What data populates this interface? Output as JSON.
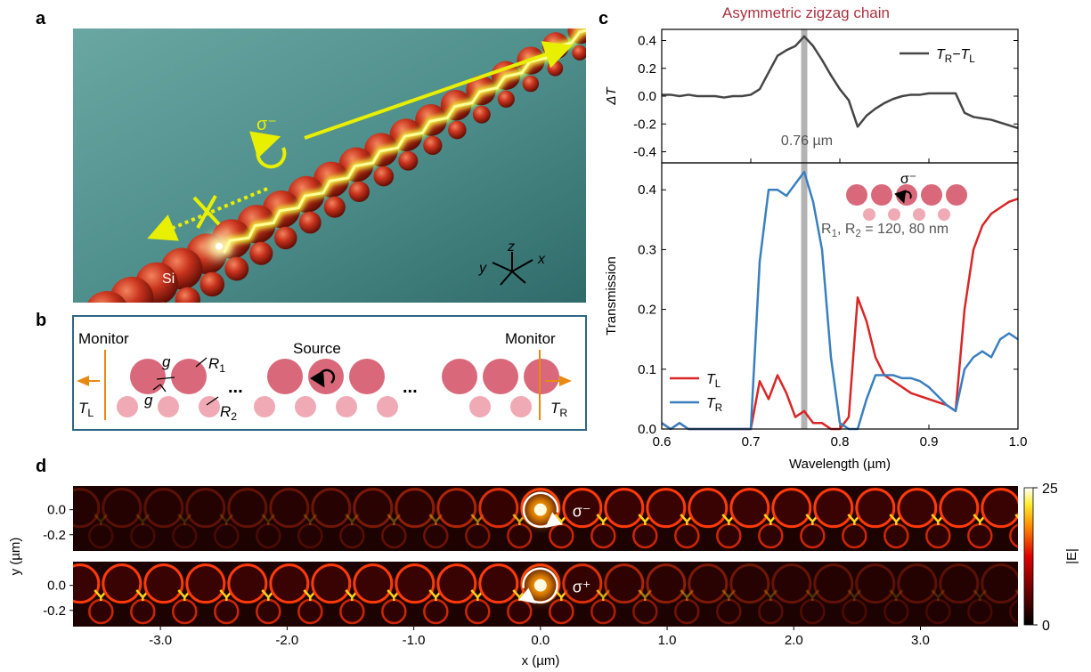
{
  "figure": {
    "panel_labels": [
      "a",
      "b",
      "c",
      "d"
    ],
    "panel_a": {
      "polarization": "σ⁻",
      "material": "Si",
      "axes": [
        "x",
        "y",
        "z"
      ]
    },
    "panel_b": {
      "monitor_left": "Monitor",
      "monitor_right": "Monitor",
      "source": "Source",
      "gap_labels": [
        "g",
        "g"
      ],
      "radius_1": [
        "R",
        "1"
      ],
      "radius_2": [
        "R",
        "2"
      ],
      "ellipsis": [
        "...",
        "..."
      ],
      "transmission_left": [
        "T",
        "L"
      ],
      "transmission_right": [
        "T",
        "R"
      ]
    }
  },
  "chart_data": [
    {
      "type": "line",
      "title": "Asymmetric zigzag chain",
      "ylabel": "ΔT",
      "xlim": [
        0.6,
        1.0
      ],
      "ylim": [
        -0.48,
        0.48
      ],
      "yticks": [
        0.4,
        0.2,
        {
          "value": 0,
          "label": "0.0"
        },
        -0.2,
        -0.4
      ],
      "highlight_x": 0.76,
      "annotation": "0.76 µm",
      "legend": "upper right",
      "x": [
        0.6,
        0.61,
        0.62,
        0.63,
        0.64,
        0.65,
        0.66,
        0.67,
        0.68,
        0.69,
        0.7,
        0.71,
        0.72,
        0.73,
        0.74,
        0.75,
        0.76,
        0.77,
        0.78,
        0.79,
        0.8,
        0.81,
        0.82,
        0.83,
        0.84,
        0.85,
        0.86,
        0.87,
        0.88,
        0.89,
        0.9,
        0.91,
        0.92,
        0.93,
        0.94,
        0.95,
        0.96,
        0.97,
        0.98,
        0.99,
        1.0
      ],
      "series": [
        {
          "name": [
            "T",
            "R",
            "−T",
            "L"
          ],
          "color": "#454545",
          "values": [
            0.01,
            0.01,
            0.0,
            0.01,
            0.0,
            0.0,
            0.0,
            -0.01,
            0.0,
            0.0,
            0.01,
            0.05,
            0.17,
            0.29,
            0.33,
            0.36,
            0.43,
            0.36,
            0.26,
            0.15,
            0.05,
            -0.03,
            -0.22,
            -0.14,
            -0.09,
            -0.05,
            -0.02,
            0.0,
            0.01,
            0.01,
            0.02,
            0.02,
            0.02,
            0.02,
            -0.12,
            -0.15,
            -0.16,
            -0.17,
            -0.19,
            -0.21,
            -0.23
          ]
        }
      ]
    },
    {
      "type": "line",
      "ylabel": "Transmission",
      "xlabel": "Wavelength (µm)",
      "xlim": [
        0.6,
        1.0
      ],
      "ylim": [
        0,
        0.445
      ],
      "yticks": [
        {
          "value": 0,
          "label": "0.0"
        },
        0.1,
        0.2,
        0.3,
        0.4
      ],
      "xticks": [
        0.6,
        0.7,
        0.8,
        0.9,
        {
          "value": 1,
          "label": "1.0"
        }
      ],
      "highlight_x": 0.76,
      "legend": "lower left",
      "inset": {
        "polarization": "σ⁻",
        "label": [
          "R",
          "1",
          ", R",
          "2",
          " = 120, 80 nm"
        ]
      },
      "x": [
        0.6,
        0.61,
        0.62,
        0.63,
        0.64,
        0.65,
        0.66,
        0.67,
        0.68,
        0.69,
        0.7,
        0.71,
        0.72,
        0.73,
        0.74,
        0.75,
        0.76,
        0.77,
        0.78,
        0.79,
        0.8,
        0.81,
        0.82,
        0.83,
        0.84,
        0.85,
        0.86,
        0.87,
        0.88,
        0.89,
        0.9,
        0.91,
        0.92,
        0.93,
        0.94,
        0.95,
        0.96,
        0.97,
        0.98,
        0.99,
        1.0
      ],
      "series": [
        {
          "name": [
            "T",
            "L"
          ],
          "color": "#d92626",
          "values": [
            0.01,
            0.0,
            0.01,
            0.0,
            0.0,
            0.0,
            0.0,
            0.0,
            0.0,
            0.0,
            0.0,
            0.08,
            0.05,
            0.09,
            0.06,
            0.02,
            0.03,
            0.01,
            0.01,
            0.0,
            0.0,
            0.02,
            0.22,
            0.18,
            0.12,
            0.09,
            0.08,
            0.07,
            0.06,
            0.055,
            0.05,
            0.045,
            0.04,
            0.03,
            0.2,
            0.3,
            0.34,
            0.36,
            0.37,
            0.38,
            0.385
          ]
        },
        {
          "name": [
            "T",
            "R"
          ],
          "color": "#3a7fc0",
          "values": [
            0.01,
            0.0,
            0.01,
            0.0,
            0.0,
            0.0,
            0.0,
            0.0,
            0.0,
            0.0,
            0.0,
            0.28,
            0.4,
            0.4,
            0.39,
            0.41,
            0.43,
            0.38,
            0.3,
            0.12,
            0.01,
            0.0,
            0.0,
            0.05,
            0.09,
            0.09,
            0.09,
            0.085,
            0.085,
            0.08,
            0.07,
            0.055,
            0.04,
            0.03,
            0.1,
            0.12,
            0.13,
            0.12,
            0.15,
            0.16,
            0.15
          ]
        }
      ]
    },
    {
      "type": "heatmap",
      "xlabel": "x (µm)",
      "ylabel": "y (µm)",
      "xlim": [
        -3.69,
        3.77
      ],
      "ylim": [
        -0.33,
        0.19
      ],
      "xticks": [
        {
          "value": -3,
          "label": "-3.0"
        },
        {
          "value": -2,
          "label": "-2.0"
        },
        {
          "value": -1,
          "label": "-1.0"
        },
        {
          "value": 0,
          "label": "0.0"
        },
        {
          "value": 1,
          "label": "1.0"
        },
        {
          "value": 2,
          "label": "2.0"
        },
        {
          "value": 3,
          "label": "3.0"
        }
      ],
      "yticks": [
        {
          "value": 0,
          "label": "0.0"
        },
        -0.2
      ],
      "panels": [
        {
          "label": "σ⁻"
        },
        {
          "label": "σ⁺"
        }
      ],
      "colorbar": {
        "label": "|E|",
        "lim": [
          0,
          25
        ],
        "ticks": [
          0,
          25
        ]
      }
    }
  ]
}
